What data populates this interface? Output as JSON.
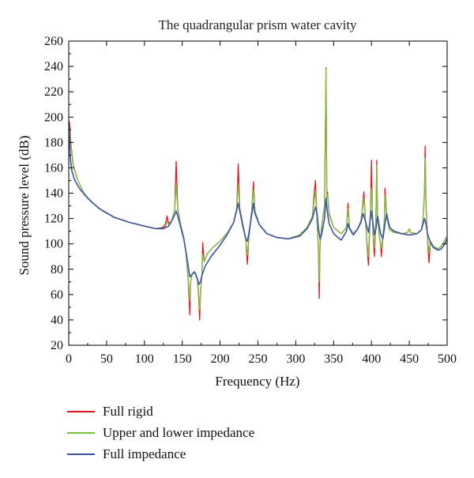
{
  "chart_data": {
    "type": "line",
    "title": "The quadrangular prism water cavity",
    "xlabel": "Frequency (Hz)",
    "ylabel": "Sound pressure level (dB)",
    "xlim": [
      0,
      500
    ],
    "ylim": [
      20,
      260
    ],
    "xticks": [
      0,
      50,
      100,
      150,
      200,
      250,
      300,
      350,
      400,
      450,
      500
    ],
    "yticks": [
      20,
      40,
      60,
      80,
      100,
      120,
      140,
      160,
      180,
      200,
      220,
      240,
      260
    ],
    "grid": false,
    "legend_position": "bottom-left",
    "series": [
      {
        "name": "Full rigid",
        "color": "#e8141b",
        "x": [
          1,
          3,
          6,
          12,
          20,
          30,
          45,
          60,
          80,
          100,
          115,
          125,
          128,
          130,
          132,
          136,
          140,
          142,
          144,
          148,
          152,
          155,
          158,
          160,
          161,
          163,
          166,
          170,
          172,
          173,
          174,
          176,
          177,
          179,
          183,
          190,
          200,
          210,
          218,
          222,
          224,
          226,
          230,
          234,
          236,
          238,
          242,
          244,
          246,
          252,
          262,
          275,
          290,
          305,
          315,
          322,
          324,
          326,
          328,
          330,
          331,
          332,
          334,
          338,
          340,
          341,
          342,
          344,
          350,
          360,
          367,
          369,
          371,
          376,
          382,
          386,
          388,
          390,
          392,
          394,
          396,
          398,
          399,
          400,
          401,
          402,
          404,
          406,
          407,
          408,
          410,
          412,
          413,
          415,
          417,
          418,
          420,
          424,
          430,
          440,
          448,
          450,
          452,
          460,
          466,
          468,
          470,
          471,
          472,
          474,
          476,
          478,
          482,
          488,
          492,
          496,
          500
        ],
        "y": [
          196,
          178,
          162,
          150,
          140,
          133,
          126,
          121,
          117,
          114,
          112,
          113,
          116,
          122,
          116,
          118,
          127,
          165,
          128,
          115,
          105,
          93,
          70,
          44,
          70,
          76,
          78,
          72,
          55,
          40,
          60,
          76,
          101,
          86,
          92,
          97,
          102,
          109,
          117,
          128,
          163,
          128,
          116,
          103,
          84,
          105,
          127,
          149,
          126,
          115,
          108,
          105,
          104,
          107,
          113,
          122,
          137,
          150,
          120,
          95,
          57,
          99,
          113,
          130,
          239,
          139,
          141,
          124,
          113,
          108,
          113,
          132,
          113,
          108,
          112,
          118,
          128,
          141,
          120,
          100,
          83,
          118,
          130,
          166,
          130,
          109,
          90,
          122,
          166,
          122,
          108,
          100,
          90,
          105,
          118,
          144,
          122,
          111,
          109,
          108,
          109,
          112,
          109,
          108,
          111,
          118,
          140,
          177,
          132,
          105,
          85,
          102,
          98,
          96,
          98,
          102,
          106
        ]
      },
      {
        "name": "Upper and lower impedance",
        "color": "#7ac142",
        "x": [
          1,
          3,
          6,
          12,
          20,
          30,
          45,
          60,
          80,
          100,
          115,
          125,
          128,
          130,
          132,
          136,
          140,
          142,
          144,
          148,
          152,
          155,
          158,
          160,
          161,
          163,
          166,
          170,
          172,
          173,
          174,
          176,
          177,
          179,
          183,
          190,
          200,
          210,
          218,
          222,
          224,
          226,
          230,
          234,
          236,
          238,
          242,
          244,
          246,
          252,
          262,
          275,
          290,
          305,
          315,
          322,
          324,
          326,
          328,
          330,
          331,
          332,
          334,
          338,
          340,
          341,
          342,
          344,
          350,
          360,
          367,
          369,
          371,
          376,
          382,
          386,
          388,
          390,
          392,
          394,
          396,
          398,
          399,
          400,
          401,
          402,
          404,
          406,
          407,
          408,
          410,
          412,
          413,
          415,
          417,
          418,
          420,
          424,
          430,
          440,
          448,
          450,
          452,
          460,
          466,
          468,
          470,
          471,
          472,
          474,
          476,
          478,
          482,
          488,
          492,
          496,
          500
        ],
        "y": [
          190,
          176,
          161,
          150,
          140,
          133,
          126,
          121,
          117,
          114,
          112,
          112,
          114,
          118,
          115,
          118,
          127,
          147,
          127,
          115,
          105,
          93,
          72,
          55,
          70,
          76,
          78,
          72,
          58,
          48,
          62,
          76,
          92,
          86,
          92,
          97,
          102,
          109,
          117,
          128,
          148,
          127,
          116,
          103,
          91,
          104,
          127,
          143,
          126,
          115,
          108,
          105,
          104,
          107,
          113,
          122,
          133,
          142,
          119,
          98,
          70,
          101,
          113,
          130,
          238,
          136,
          139,
          123,
          113,
          108,
          113,
          128,
          113,
          108,
          112,
          118,
          127,
          136,
          119,
          102,
          90,
          120,
          128,
          144,
          128,
          110,
          97,
          121,
          162,
          121,
          108,
          101,
          96,
          106,
          118,
          138,
          121,
          111,
          109,
          108,
          109,
          112,
          109,
          108,
          111,
          118,
          138,
          168,
          130,
          106,
          93,
          102,
          98,
          96,
          98,
          102,
          106
        ]
      },
      {
        "name": "Full impedance",
        "color": "#3a55a4",
        "x": [
          0,
          1,
          2,
          4,
          8,
          15,
          25,
          40,
          60,
          80,
          100,
          115,
          125,
          132,
          136,
          140,
          142,
          144,
          148,
          152,
          156,
          160,
          163,
          166,
          168,
          170,
          172,
          174,
          176,
          180,
          188,
          200,
          210,
          218,
          222,
          224,
          226,
          230,
          234,
          236,
          238,
          242,
          244,
          246,
          252,
          262,
          275,
          290,
          305,
          315,
          322,
          326,
          328,
          330,
          332,
          334,
          338,
          340,
          342,
          344,
          350,
          360,
          367,
          369,
          371,
          376,
          382,
          386,
          389,
          392,
          396,
          400,
          402,
          404,
          406,
          408,
          410,
          412,
          415,
          418,
          420,
          424,
          430,
          440,
          450,
          460,
          466,
          470,
          472,
          474,
          478,
          482,
          488,
          492,
          496,
          500
        ],
        "y": [
          198,
          182,
          168,
          158,
          150,
          143,
          136,
          128,
          121,
          117,
          114,
          112,
          112,
          114,
          118,
          123,
          126,
          122,
          113,
          104,
          90,
          74,
          76,
          78,
          76,
          72,
          68,
          70,
          75,
          82,
          90,
          99,
          108,
          117,
          127,
          132,
          126,
          114,
          104,
          102,
          108,
          124,
          132,
          124,
          115,
          108,
          105,
          104,
          106,
          112,
          120,
          129,
          125,
          112,
          104,
          107,
          120,
          136,
          124,
          116,
          108,
          103,
          110,
          116,
          112,
          107,
          112,
          117,
          124,
          118,
          109,
          126,
          116,
          107,
          112,
          122,
          115,
          108,
          104,
          116,
          124,
          113,
          110,
          108,
          107,
          108,
          111,
          120,
          116,
          108,
          101,
          97,
          95,
          96,
          99,
          104
        ]
      }
    ]
  }
}
